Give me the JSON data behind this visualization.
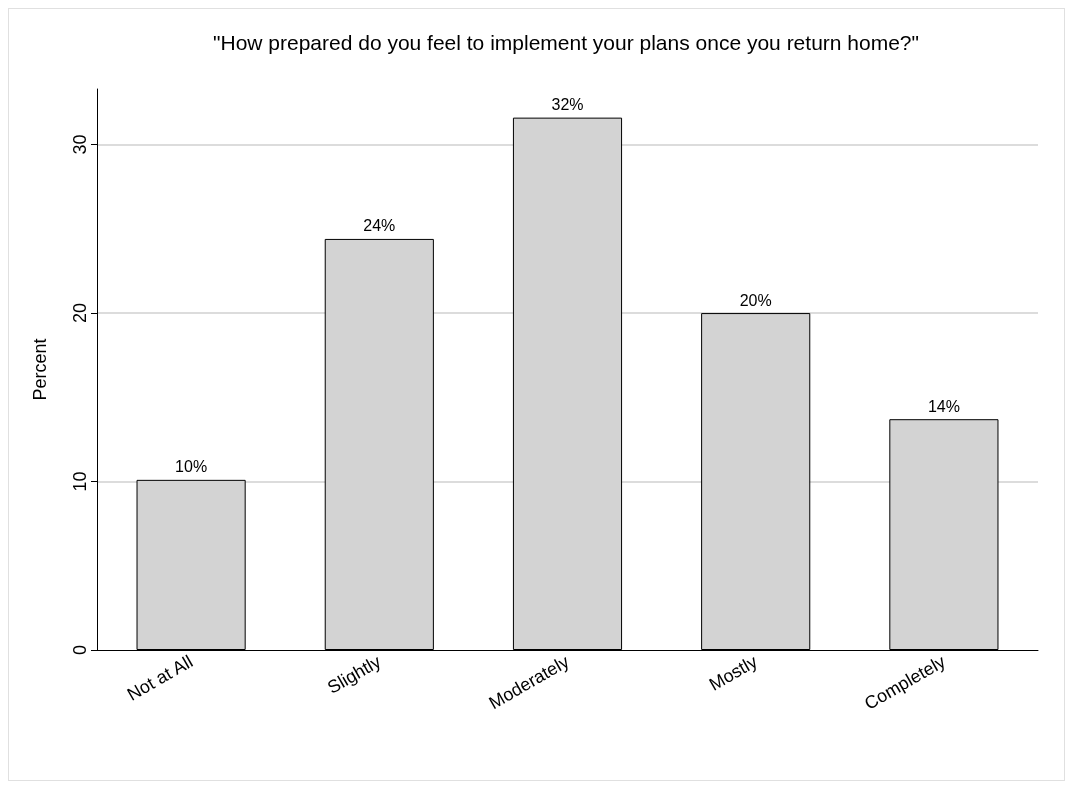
{
  "chart_data": {
    "type": "bar",
    "title": "\"How prepared do you feel to implement your plans once you return home?\"",
    "ylabel": "Percent",
    "categories": [
      "Not at All",
      "Slightly",
      "Moderately",
      "Mostly",
      "Completely"
    ],
    "values": [
      10.1,
      24.4,
      31.6,
      20.0,
      13.7
    ],
    "value_labels": [
      "10%",
      "24%",
      "32%",
      "20%",
      "14%"
    ],
    "color": "#d3d3d3",
    "ylim": [
      0,
      33.3
    ],
    "yticks": [
      0,
      10,
      20,
      30
    ],
    "grid": "y"
  }
}
